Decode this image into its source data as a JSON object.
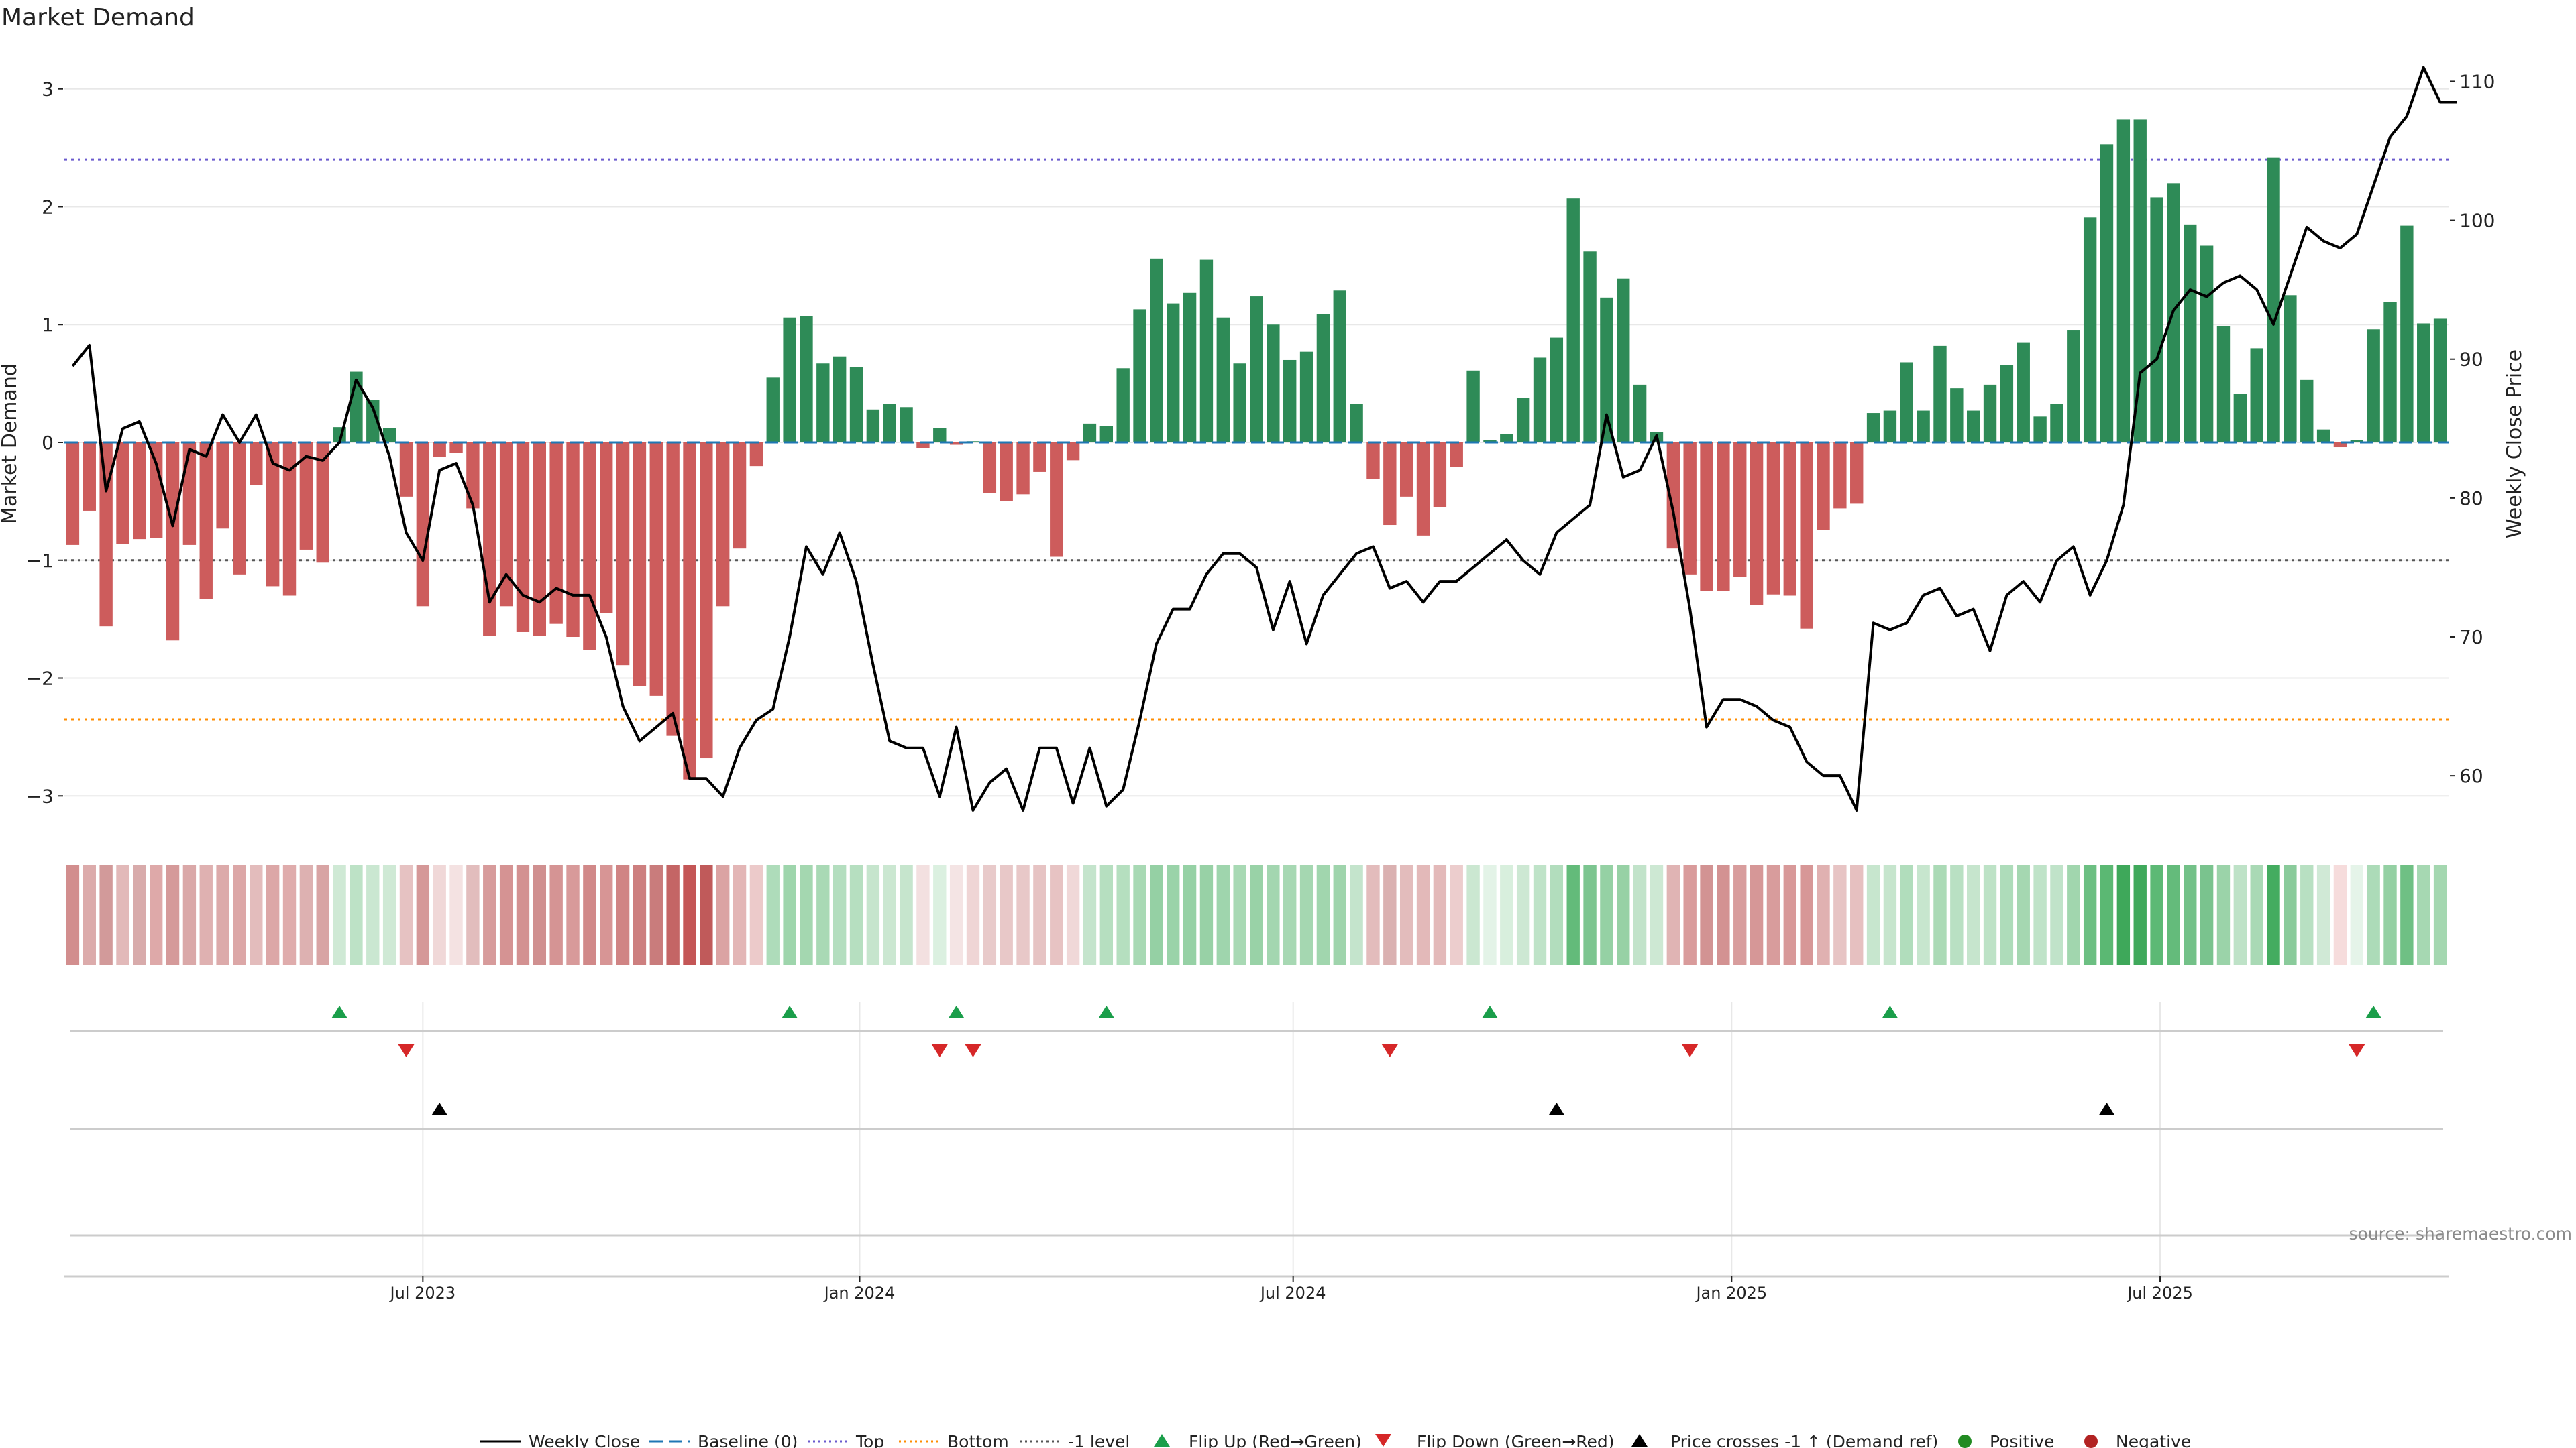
{
  "chart_data": {
    "type": "bar",
    "title": "Market Demand",
    "ylabel_left": "Market Demand",
    "ylabel_right": "Weekly Close Price",
    "ylim_left": [
      -3.3,
      3.3
    ],
    "ylim_right": [
      56,
      112
    ],
    "yticks_left": [
      3,
      2,
      1,
      0,
      -1,
      -2,
      -3
    ],
    "yticks_left_labels": [
      "3",
      "2",
      "1",
      "0",
      "−1",
      "−2",
      "−3"
    ],
    "yticks_right": [
      110,
      100,
      90,
      80,
      70,
      60
    ],
    "yticks_right_labels": [
      "110",
      "100",
      "90",
      "80",
      "70",
      "60"
    ],
    "xtick_labels": [
      "Jul 2023",
      "Jan 2024",
      "Jul 2024",
      "Jan 2025",
      "Jul 2025"
    ],
    "xtick_index": [
      21.5,
      47.7,
      73.7,
      100.0,
      125.7
    ],
    "reference_lines": {
      "top": 2.4,
      "bottom": -2.35,
      "minus_one": -1,
      "baseline": 0
    },
    "demand": [
      -0.87,
      -0.58,
      -1.56,
      -0.86,
      -0.82,
      -0.81,
      -1.68,
      -0.87,
      -1.33,
      -0.73,
      -1.12,
      -0.36,
      -1.22,
      -1.3,
      -0.91,
      -1.02,
      0.13,
      0.6,
      0.36,
      0.12,
      -0.46,
      -1.39,
      -0.12,
      -0.09,
      -0.56,
      -1.64,
      -1.39,
      -1.61,
      -1.64,
      -1.54,
      -1.65,
      -1.76,
      -1.45,
      -1.89,
      -2.07,
      -2.15,
      -2.49,
      -2.86,
      -2.68,
      -1.39,
      -0.9,
      -0.2,
      0.55,
      1.06,
      1.07,
      0.67,
      0.73,
      0.64,
      0.28,
      0.33,
      0.3,
      -0.05,
      0.12,
      -0.02,
      0.01,
      -0.43,
      -0.5,
      -0.44,
      -0.25,
      -0.97,
      -0.15,
      0.16,
      0.14,
      0.63,
      1.13,
      1.56,
      1.18,
      1.27,
      1.55,
      1.06,
      0.67,
      1.24,
      1.0,
      0.7,
      0.77,
      1.09,
      1.29,
      0.33,
      -0.31,
      -0.7,
      -0.46,
      -0.79,
      -0.55,
      -0.21,
      0.61,
      0.02,
      0.07,
      0.38,
      0.72,
      0.89,
      2.07,
      1.62,
      1.23,
      1.39,
      0.49,
      0.09,
      -0.9,
      -1.12,
      -1.26,
      -1.26,
      -1.14,
      -1.38,
      -1.29,
      -1.3,
      -1.58,
      -0.74,
      -0.56,
      -0.52,
      0.25,
      0.27,
      0.68,
      0.27,
      0.82,
      0.46,
      0.27,
      0.49,
      0.66,
      0.85,
      0.22,
      0.33,
      0.95,
      1.91,
      2.53,
      2.74,
      2.74,
      2.08,
      2.2,
      1.85,
      1.67,
      0.99,
      0.41,
      0.8,
      2.42,
      1.25,
      0.53,
      0.11,
      -0.04,
      0.02,
      0.96,
      1.19,
      1.84,
      1.01,
      1.05
    ],
    "weekly_close": [
      89.5,
      91.0,
      80.5,
      85.0,
      85.5,
      82.5,
      78.0,
      83.5,
      83.0,
      86.0,
      84.0,
      86.0,
      82.5,
      82.0,
      83.0,
      82.7,
      84.0,
      88.5,
      86.5,
      83.0,
      77.5,
      75.5,
      82.0,
      82.5,
      79.5,
      72.5,
      74.5,
      73.0,
      72.5,
      73.5,
      73.0,
      73.0,
      70.0,
      65.0,
      62.5,
      63.5,
      64.5,
      59.8,
      59.8,
      58.5,
      62.0,
      64.0,
      64.8,
      70.0,
      76.5,
      74.5,
      77.5,
      74.0,
      68.0,
      62.5,
      62.0,
      62.0,
      58.5,
      63.5,
      57.5,
      59.5,
      60.5,
      57.5,
      62.0,
      62.0,
      58.0,
      62.0,
      57.8,
      59.0,
      64.0,
      69.5,
      72.0,
      72.0,
      74.5,
      76.0,
      76.0,
      75.0,
      70.5,
      74.0,
      69.5,
      73.0,
      74.5,
      76.0,
      76.5,
      73.5,
      74.0,
      72.5,
      74.0,
      74.0,
      75.0,
      76.0,
      77.0,
      75.5,
      74.5,
      77.5,
      78.5,
      79.5,
      86.0,
      81.5,
      82.0,
      84.5,
      79.0,
      72.0,
      63.5,
      65.5,
      65.5,
      65.0,
      64.0,
      63.5,
      61.0,
      60.0,
      60.0,
      57.5,
      71.0,
      70.5,
      71.0,
      73.0,
      73.5,
      71.5,
      72.0,
      69.0,
      73.0,
      74.0,
      72.5,
      75.5,
      76.5,
      73.0,
      75.5,
      79.5,
      89.0,
      90.0,
      93.5,
      95.0,
      94.5,
      95.5,
      96.0,
      95.0,
      92.5,
      96.0,
      99.5,
      98.5,
      98.0,
      99.0,
      102.5,
      106.0,
      107.5,
      111.0,
      108.5,
      108.5
    ],
    "heat_colors": [
      "#d28e8e",
      "#dcabab",
      "#d29a9a",
      "#e2b9b9",
      "#d8abab",
      "#dea9a9",
      "#d59a9a",
      "#daa8a8",
      "#dfb1b1",
      "#dcaaaa",
      "#dca7a7",
      "#e3bcbc",
      "#dca7a7",
      "#dfacac",
      "#ddb1b1",
      "#d8a4a4",
      "#cfe9d5",
      "#bde2c6",
      "#cae7d1",
      "#cfe9d5",
      "#e6c2c2",
      "#d59898",
      "#f0d8d8",
      "#f4e2e2",
      "#e2bdbd",
      "#d79b9b",
      "#d59393",
      "#d39191",
      "#d09090",
      "#d59494",
      "#d89a9a",
      "#d18989",
      "#d79595",
      "#d08484",
      "#cd7f7f",
      "#c97c7c",
      "#c46565",
      "#c45656",
      "#c05a5a",
      "#dba3a3",
      "#e3b6b6",
      "#eccaca",
      "#aedcba",
      "#9ed5ac",
      "#a4d7b0",
      "#a9d9b5",
      "#b4debf",
      "#b6dfc0",
      "#c6e5cd",
      "#cbe7d1",
      "#c6e5cd",
      "#f3e0e0",
      "#dbf0e0",
      "#f4e4e4",
      "#efd5d5",
      "#e8caca",
      "#e8c8c8",
      "#e8c8c8",
      "#e6c3c3",
      "#e7c3c3",
      "#f0d8d8",
      "#c4e4cc",
      "#b6dfc0",
      "#b5dfbf",
      "#a8d9b4",
      "#95d0a4",
      "#9ad3a9",
      "#96d1a5",
      "#98d1a6",
      "#9fd5ad",
      "#a8d9b4",
      "#99d2a7",
      "#a3d6b0",
      "#a7d8b3",
      "#a5d7b1",
      "#a1d6ae",
      "#9fd4ac",
      "#c4e4cc",
      "#e3bcbc",
      "#dab1b1",
      "#e3bcbc",
      "#e3b9b9",
      "#e3b9b9",
      "#eccdcd",
      "#cbe7d1",
      "#e3f3e7",
      "#d8efdd",
      "#cde8d3",
      "#bfe3c8",
      "#b2ddbd",
      "#63bb7a",
      "#7cc590",
      "#95d1a4",
      "#97d1a5",
      "#c2e3ca",
      "#cde8d3",
      "#e0b4b4",
      "#d99b9b",
      "#d29393",
      "#d39292",
      "#d89d9d",
      "#d69797",
      "#d89c9c",
      "#d89999",
      "#d79797",
      "#e0b1b1",
      "#e7c4c4",
      "#e6c0c0",
      "#c7e6ce",
      "#c6e5cd",
      "#b1ddbc",
      "#c7e6ce",
      "#abdab6",
      "#b9e0c3",
      "#c6e5cd",
      "#bde2c6",
      "#aedcba",
      "#a5d7b1",
      "#bfe3c8",
      "#c0e3c9",
      "#a1d6ae",
      "#6cbf82",
      "#5bb873",
      "#3ea85a",
      "#3fa95b",
      "#5db975",
      "#64bb7b",
      "#73c188",
      "#7ac38e",
      "#9bd3a9",
      "#bee2c7",
      "#a9d9b5",
      "#44ac60",
      "#8acb9b",
      "#b8e0c2",
      "#d0e9d6",
      "#f6dcdc",
      "#e5f4e9",
      "#acdbb8",
      "#94d0a3",
      "#6fc084",
      "#a6d8b2",
      "#a4d7b0"
    ],
    "flip_up_index": [
      16,
      43,
      53,
      62,
      85,
      109,
      138
    ],
    "flip_down_index": [
      20,
      52,
      54,
      79,
      97,
      137
    ],
    "price_cross_index": [
      22,
      89,
      122
    ],
    "legend": [
      "Weekly Close",
      "Baseline (0)",
      "Top",
      "Bottom",
      "-1 level",
      "Flip Up (Red→Green)",
      "Flip Down (Green→Red)",
      "Price crosses -1 ↑ (Demand ref)",
      "Positive",
      "Negative"
    ],
    "source": "source: sharemaestro.com"
  },
  "colors": {
    "positive_bar": "#2e8b57",
    "negative_bar": "#cd5c5c",
    "flip_up": "#1a9e4a",
    "flip_down": "#d62728",
    "price_line": "#000000",
    "top_line": "#6a5acd",
    "bottom_line": "#ff8c00",
    "minus_one_line": "#555555",
    "baseline": "#1f77b4",
    "grid": "#e8e8e8",
    "legend_positive": "#228b22",
    "legend_negative": "#b22222"
  }
}
